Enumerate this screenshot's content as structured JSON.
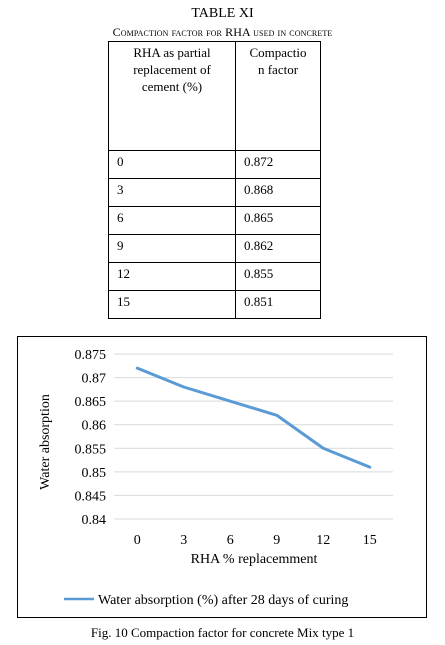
{
  "table": {
    "number": "TABLE XI",
    "caption": "Compaction factor for RHA used in concrete",
    "headers": [
      "RHA as partial replacement of cement (%)",
      "Compactio n factor"
    ],
    "header_lines": [
      [
        "RHA as partial",
        "replacement of",
        "cement (%)"
      ],
      [
        "Compactio",
        "n factor"
      ]
    ],
    "rows": [
      [
        "0",
        "0.872"
      ],
      [
        "3",
        "0.868"
      ],
      [
        "6",
        "0.865"
      ],
      [
        "9",
        "0.862"
      ],
      [
        "12",
        "0.855"
      ],
      [
        "15",
        "0.851"
      ]
    ]
  },
  "chart_data": {
    "type": "line",
    "title": "",
    "xlabel": "RHA % replacemment",
    "ylabel": "Water absorption",
    "categories": [
      "0",
      "3",
      "6",
      "9",
      "12",
      "15"
    ],
    "series": [
      {
        "name": "Water absorption (%) after 28 days of curing",
        "values": [
          0.872,
          0.868,
          0.865,
          0.862,
          0.855,
          0.851
        ]
      }
    ],
    "ylim": [
      0.84,
      0.875
    ],
    "yticks": [
      "0.875",
      "0.87",
      "0.865",
      "0.86",
      "0.855",
      "0.85",
      "0.845",
      "0.84"
    ],
    "grid": true,
    "legend": "bottom",
    "series_color": "#5B9BD5",
    "grid_color": "#D9D9D9"
  },
  "figure_caption": "Fig. 10 Compaction factor for concrete Mix type 1"
}
